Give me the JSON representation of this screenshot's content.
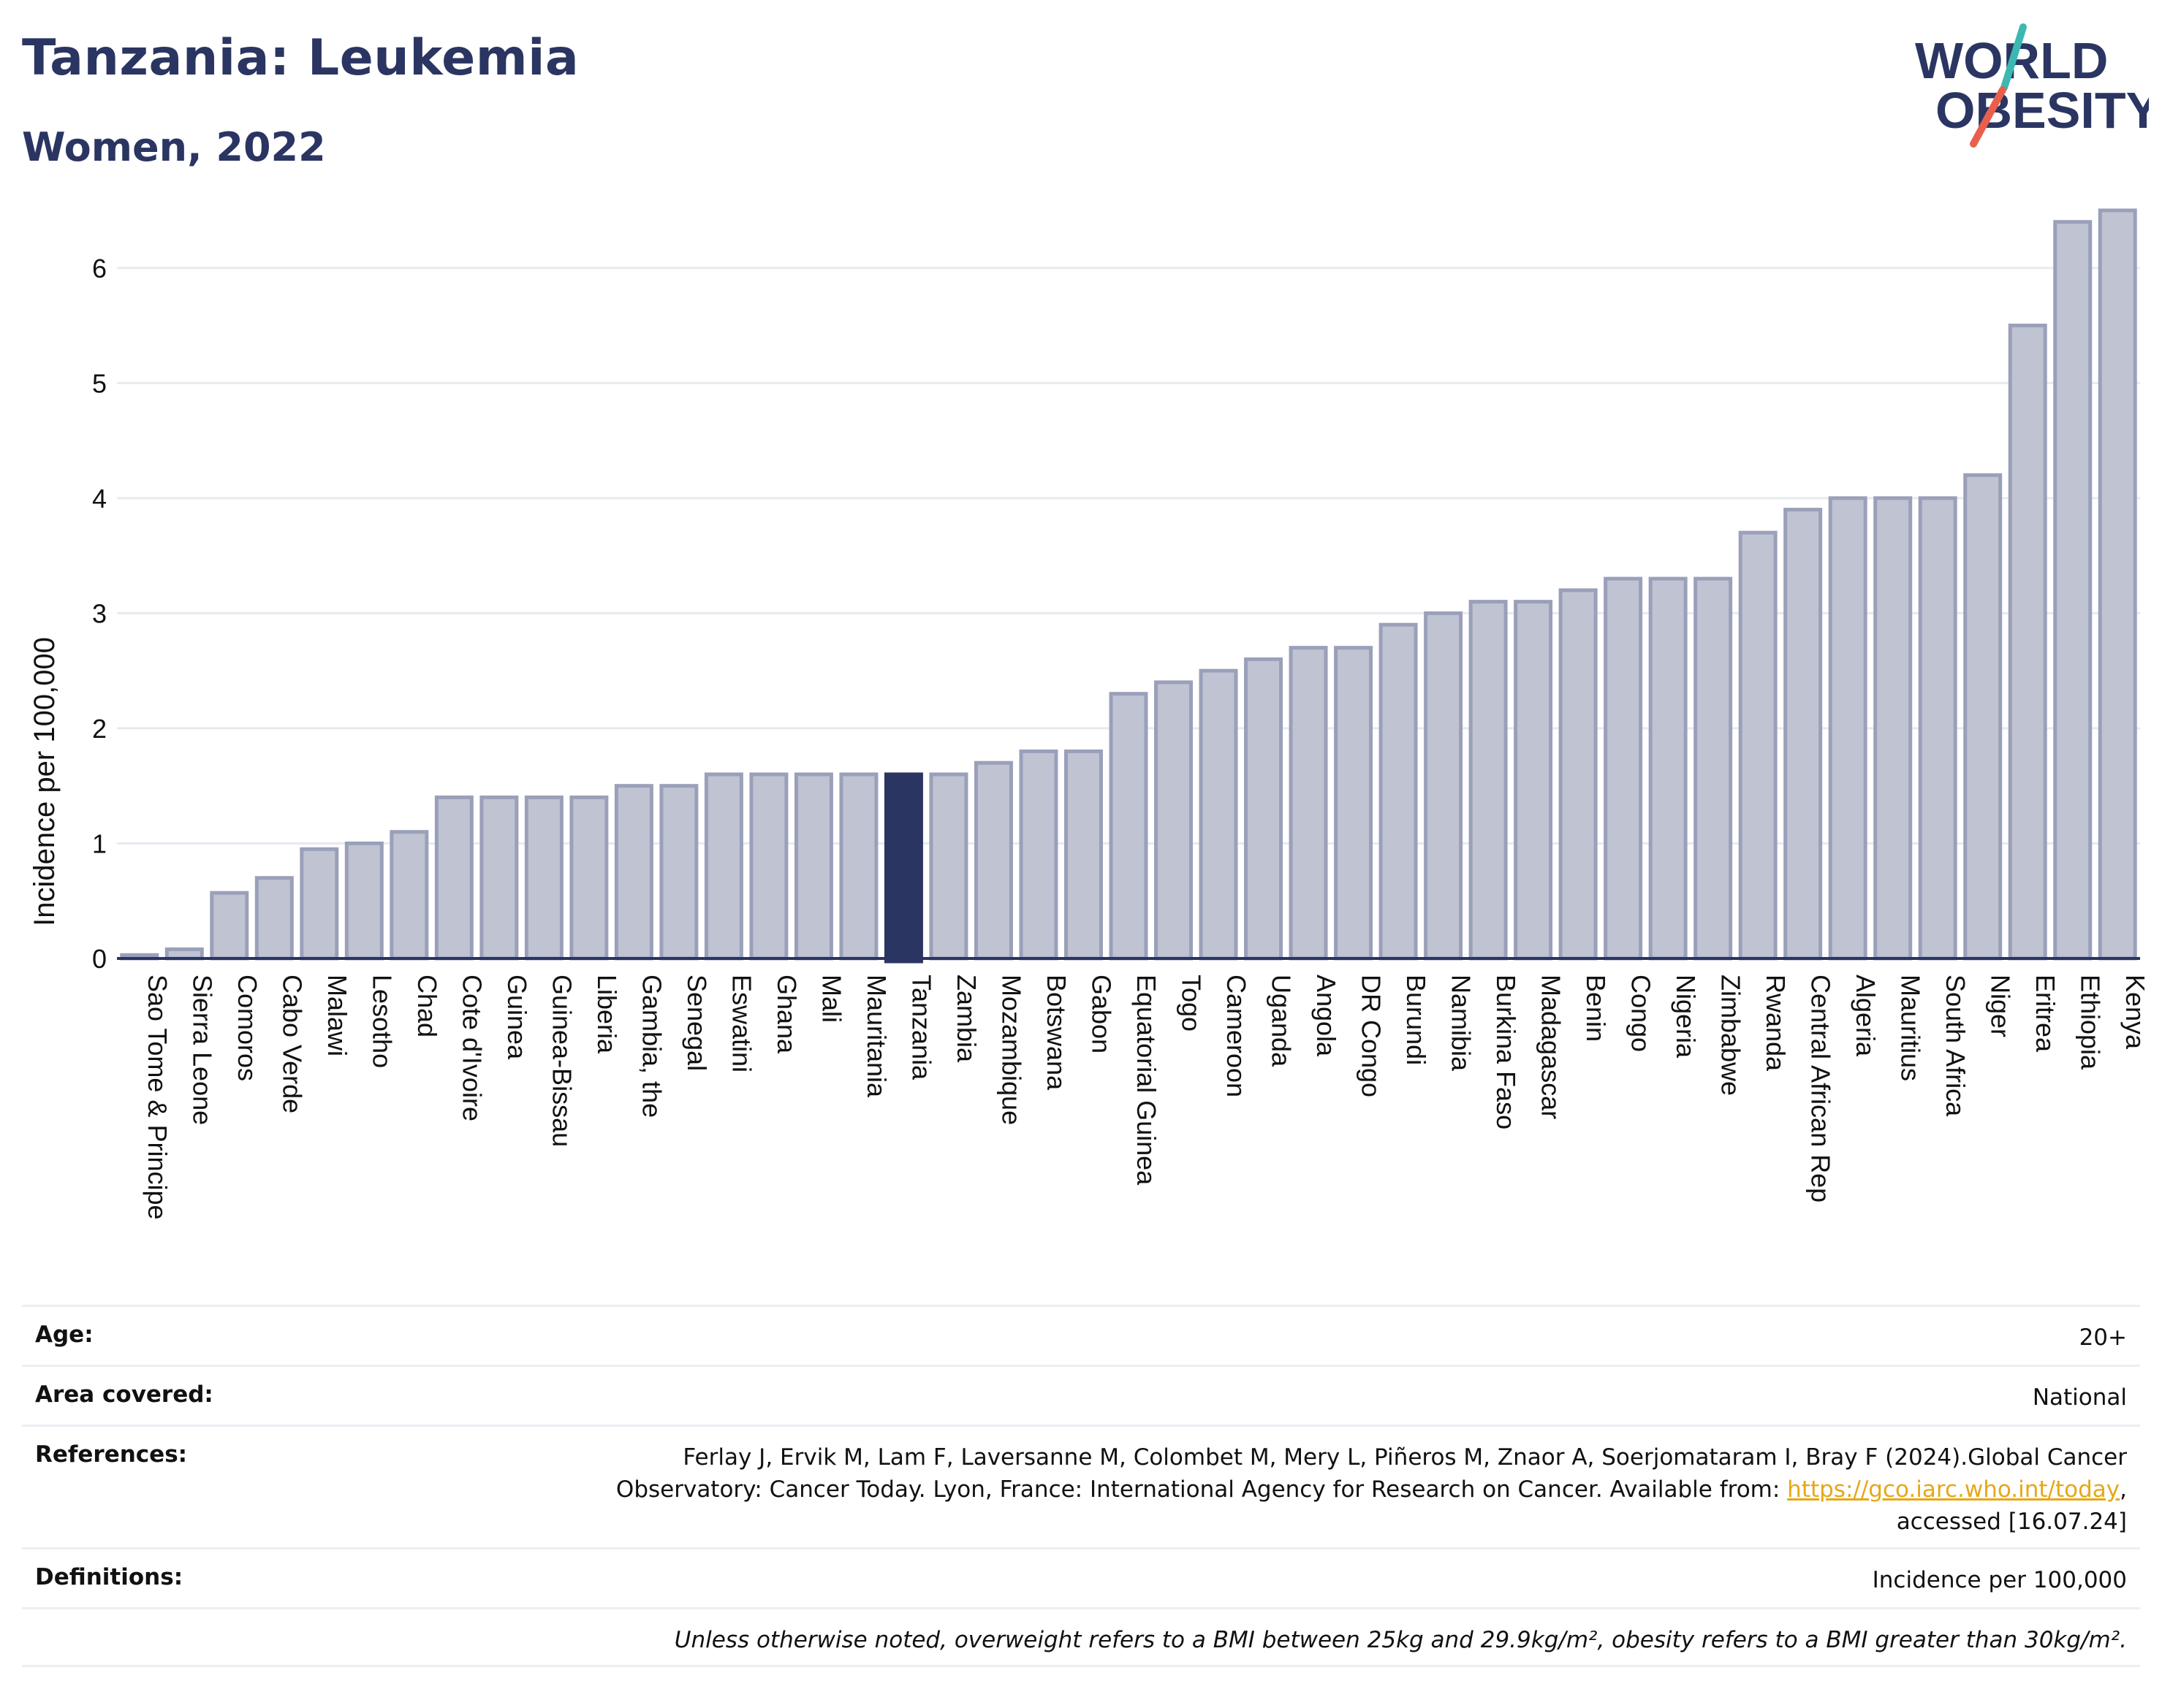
{
  "header": {
    "title": "Tanzania: Leukemia",
    "subtitle": "Women, 2022"
  },
  "logo": {
    "line1": "WORLD",
    "line2": "OBESITY",
    "text_color": "#2b3562",
    "slash_colors": [
      "#3cb8b2",
      "#e8604c"
    ]
  },
  "colors": {
    "bar": "#bfc3d2",
    "bar_border": "#9aa0b9",
    "highlight": "#2b3562",
    "grid": "#e8eaf0",
    "axis": "#2b3562"
  },
  "chart_data": {
    "type": "bar",
    "ylabel": "Incidence per 100,000",
    "ylim": [
      0,
      6.5
    ],
    "yticks": [
      0,
      1,
      2,
      3,
      4,
      5,
      6
    ],
    "highlight": "Tanzania",
    "grid": true,
    "categories": [
      "Sao Tome & Principe",
      "Sierra Leone",
      "Comoros",
      "Cabo Verde",
      "Malawi",
      "Lesotho",
      "Chad",
      "Cote d'Ivoire",
      "Guinea",
      "Guinea-Bissau",
      "Liberia",
      "Gambia, the",
      "Senegal",
      "Eswatini",
      "Ghana",
      "Mali",
      "Mauritania",
      "Tanzania",
      "Zambia",
      "Mozambique",
      "Botswana",
      "Gabon",
      "Equatorial Guinea",
      "Togo",
      "Cameroon",
      "Uganda",
      "Angola",
      "DR Congo",
      "Burundi",
      "Namibia",
      "Burkina Faso",
      "Madagascar",
      "Benin",
      "Congo",
      "Nigeria",
      "Zimbabwe",
      "Rwanda",
      "Central African Rep",
      "Algeria",
      "Mauritius",
      "South Africa",
      "Niger",
      "Eritrea",
      "Ethiopia",
      "Kenya"
    ],
    "values": [
      0.03,
      0.08,
      0.57,
      0.7,
      0.95,
      1.0,
      1.1,
      1.4,
      1.4,
      1.4,
      1.4,
      1.5,
      1.5,
      1.6,
      1.6,
      1.6,
      1.6,
      1.6,
      1.6,
      1.7,
      1.8,
      1.8,
      2.3,
      2.4,
      2.5,
      2.6,
      2.7,
      2.7,
      2.9,
      3.0,
      3.1,
      3.1,
      3.2,
      3.3,
      3.3,
      3.3,
      3.7,
      3.9,
      4.0,
      4.0,
      4.0,
      4.2,
      5.5,
      6.4,
      6.5
    ]
  },
  "info": {
    "age_label": "Age:",
    "age_value": "20+",
    "area_label": "Area covered:",
    "area_value": "National",
    "references_label": "References:",
    "references_line1": "Ferlay J, Ervik M, Lam F, Laversanne M, Colombet M, Mery L, Piñeros M, Znaor A, Soerjomataram I, Bray F (2024).Global Cancer",
    "references_line2": "Observatory: Cancer Today. Lyon, France: International Agency for Research on Cancer. Available from: ",
    "references_link": "https://gco.iarc.who.int/today",
    "references_line2_end": ",",
    "references_line3": "accessed [16.07.24]",
    "definitions_label": "Definitions:",
    "definitions_value": "Incidence per 100,000",
    "note": "Unless otherwise noted, overweight refers to a BMI between 25kg and 29.9kg/m², obesity refers to a BMI greater than 30kg/m²."
  }
}
